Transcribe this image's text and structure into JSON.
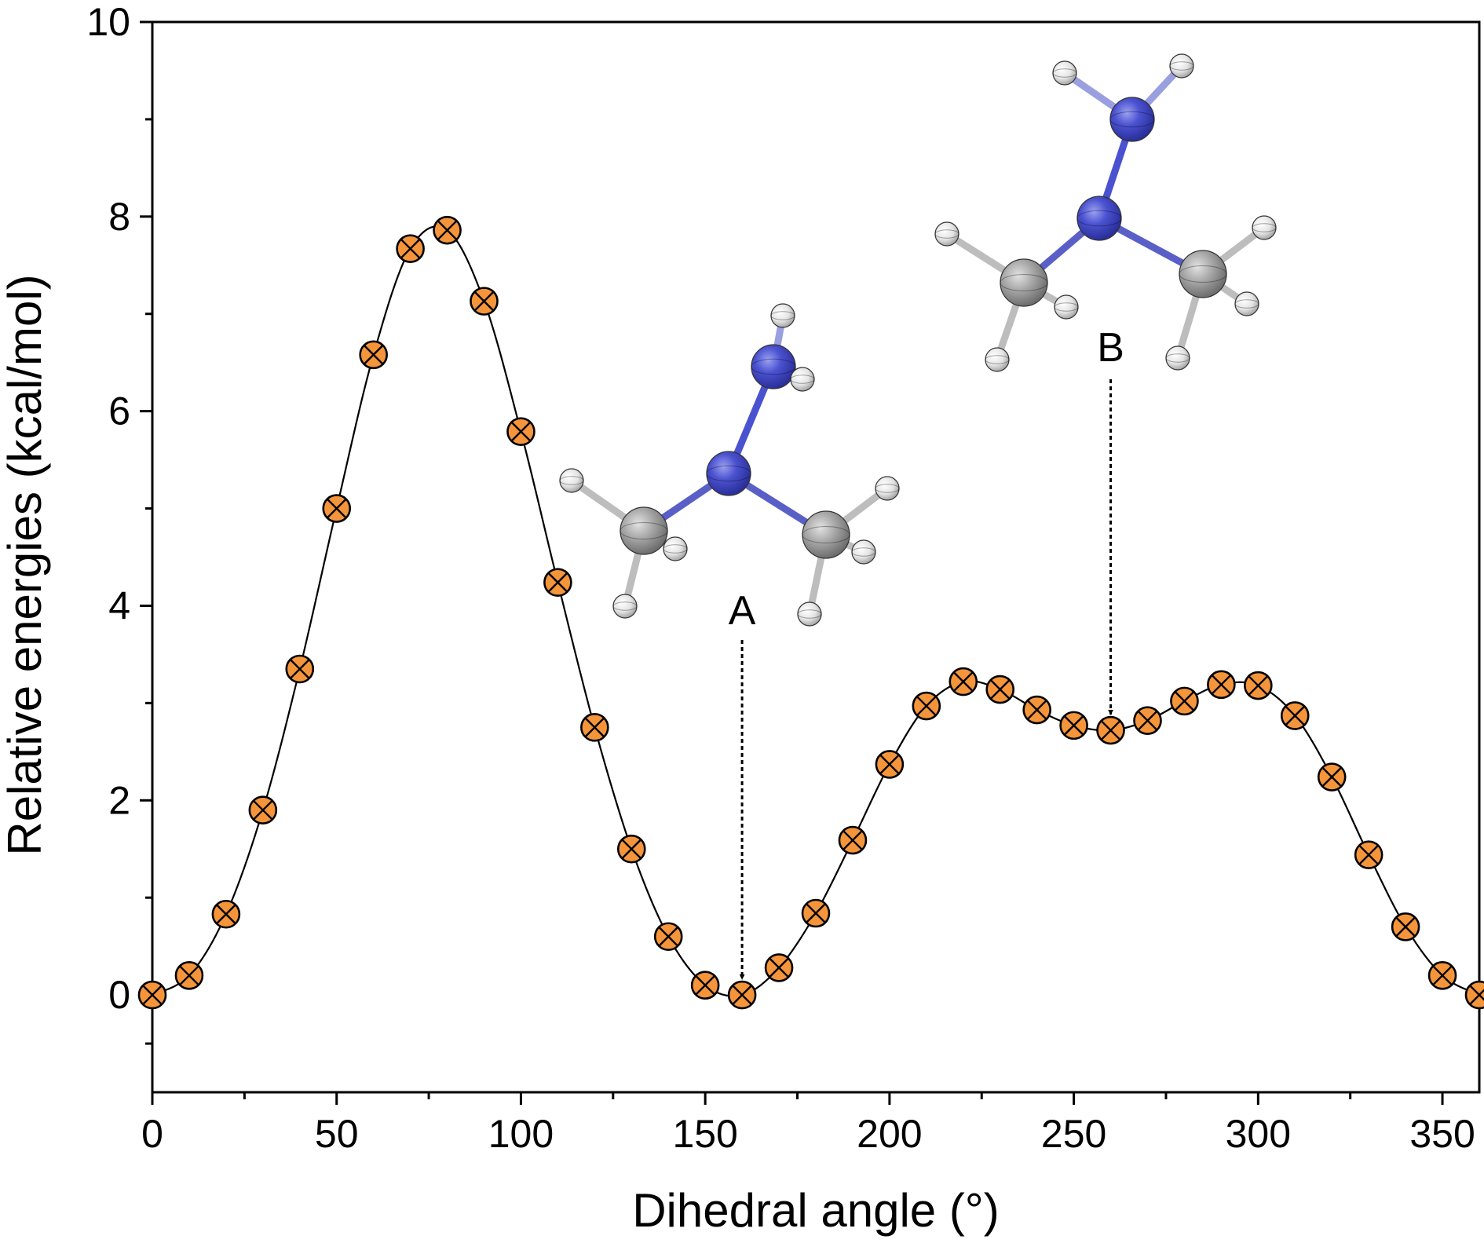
{
  "chart_data": {
    "type": "scatter",
    "xlabel": "Dihedral angle (°)",
    "ylabel": "Relative energies (kcal/mol)",
    "xlim": [
      0,
      360
    ],
    "ylim": [
      -1,
      10
    ],
    "x_ticks": [
      0,
      50,
      100,
      150,
      200,
      250,
      300,
      350
    ],
    "y_ticks": [
      0,
      2,
      4,
      6,
      8,
      10
    ],
    "grid": false,
    "legend": "none",
    "series": [
      {
        "marker": "circle-x",
        "marker_color": "#F5953B",
        "line": "smooth",
        "line_color": "#000000",
        "x": [
          0,
          10,
          20,
          30,
          40,
          50,
          60,
          70,
          80,
          90,
          100,
          110,
          120,
          130,
          140,
          150,
          160,
          170,
          180,
          190,
          200,
          210,
          220,
          230,
          240,
          250,
          260,
          270,
          280,
          290,
          300,
          310,
          320,
          330,
          340,
          350,
          360
        ],
        "y": [
          0.0,
          0.2,
          0.83,
          1.9,
          3.35,
          5.0,
          6.58,
          7.67,
          7.86,
          7.13,
          5.79,
          4.24,
          2.75,
          1.5,
          0.6,
          0.1,
          0.0,
          0.28,
          0.84,
          1.59,
          2.37,
          2.97,
          3.22,
          3.14,
          2.93,
          2.77,
          2.72,
          2.82,
          3.02,
          3.19,
          3.18,
          2.87,
          2.24,
          1.44,
          0.7,
          0.2,
          0.0
        ]
      }
    ],
    "annotations": [
      {
        "label": "A",
        "x": 160,
        "y": 0.0
      },
      {
        "label": "B",
        "x": 260,
        "y": 2.72
      }
    ]
  }
}
